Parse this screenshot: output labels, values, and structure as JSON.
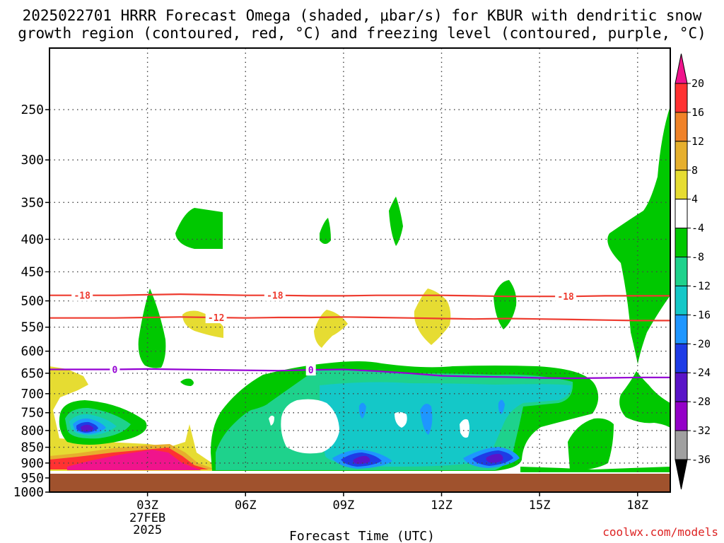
{
  "colors": {
    "ground": "#a0522d",
    "dgz_line": "#ee3b2f",
    "freezing_line": "#9400d3",
    "credit": "#d22222",
    "scale": [
      "#a0a0a0",
      "#9400c8",
      "#5a14c8",
      "#1e3ce6",
      "#1e96ff",
      "#14c8c8",
      "#1ed28c",
      "#00c800",
      "#ffffff",
      "#e6dc32",
      "#e6af2d",
      "#f08228",
      "#ff3232",
      "#f0148c"
    ]
  },
  "chart_data": {
    "type": "heatmap",
    "title_lines": [
      "2025022701 HRRR Forecast Omega (shaded, μbar/s) for KBUR with dendritic snow",
      "growth region (contoured, red, °C) and freezing level (contoured, purple, °C)"
    ],
    "xlabel": "Forecast Time (UTC)",
    "x_ticks": [
      {
        "hour": 3,
        "label": "03Z",
        "sub": [
          "27FEB",
          "2025"
        ]
      },
      {
        "hour": 6,
        "label": "06Z"
      },
      {
        "hour": 9,
        "label": "09Z"
      },
      {
        "hour": 12,
        "label": "12Z"
      },
      {
        "hour": 15,
        "label": "15Z"
      },
      {
        "hour": 18,
        "label": "18Z"
      }
    ],
    "xlim": [
      0,
      19
    ],
    "y_ticks": [
      "250",
      "300",
      "350",
      "400",
      "450",
      "500",
      "550",
      "600",
      "650",
      "700",
      "750",
      "800",
      "850",
      "900",
      "950",
      "1000"
    ],
    "ylim": [
      1000,
      200
    ],
    "yscale": "log",
    "grid": true,
    "colorbar": {
      "labels": [
        "20",
        "16",
        "12",
        "8",
        "4",
        "-4",
        "-8",
        "-12",
        "-16",
        "-20",
        "-24",
        "-28",
        "-32",
        "-36"
      ],
      "boundaries": [
        -36,
        -32,
        -28,
        -24,
        -20,
        -16,
        -12,
        -8,
        -4,
        4,
        8,
        12,
        16,
        20
      ]
    },
    "contours": [
      {
        "label": "-18",
        "color": "#ee3b2f",
        "points": [
          [
            0,
            490
          ],
          [
            2,
            490
          ],
          [
            3,
            489
          ],
          [
            4,
            488
          ],
          [
            5,
            489
          ],
          [
            6,
            490
          ],
          [
            7,
            490
          ],
          [
            8,
            491
          ],
          [
            9,
            491
          ],
          [
            10,
            490
          ],
          [
            11,
            490
          ],
          [
            12,
            490
          ],
          [
            13,
            491
          ],
          [
            14,
            492
          ],
          [
            15,
            492
          ],
          [
            16,
            492
          ],
          [
            17,
            491
          ],
          [
            18,
            491
          ],
          [
            19,
            491
          ]
        ],
        "label_hours": [
          1.0,
          6.9,
          15.8
        ]
      },
      {
        "label": "-12",
        "color": "#ee3b2f",
        "points": [
          [
            0,
            532
          ],
          [
            2,
            532
          ],
          [
            3,
            531
          ],
          [
            4,
            530
          ],
          [
            5,
            531
          ],
          [
            6,
            532
          ],
          [
            7,
            531
          ],
          [
            8,
            531
          ],
          [
            9,
            530
          ],
          [
            10,
            531
          ],
          [
            11,
            532
          ],
          [
            12,
            533
          ],
          [
            13,
            534
          ],
          [
            14,
            533
          ],
          [
            15,
            534
          ],
          [
            16,
            535
          ],
          [
            17,
            536
          ],
          [
            18,
            537
          ],
          [
            19,
            537
          ]
        ],
        "label_hours": [
          5.1
        ]
      },
      {
        "label": "0",
        "color": "#9400d3",
        "points": [
          [
            0,
            641
          ],
          [
            2,
            641
          ],
          [
            3,
            640
          ],
          [
            4,
            641
          ],
          [
            5,
            642
          ],
          [
            6,
            643
          ],
          [
            7,
            644
          ],
          [
            8,
            642
          ],
          [
            9,
            641
          ],
          [
            10,
            645
          ],
          [
            11,
            650
          ],
          [
            12,
            656
          ],
          [
            13,
            658
          ],
          [
            14,
            659
          ],
          [
            15,
            661
          ],
          [
            16,
            662
          ],
          [
            17,
            661
          ],
          [
            18,
            660
          ],
          [
            19,
            660
          ]
        ],
        "label_hours": [
          2.0,
          8.0
        ]
      }
    ]
  },
  "credit": "coolwx.com/models"
}
